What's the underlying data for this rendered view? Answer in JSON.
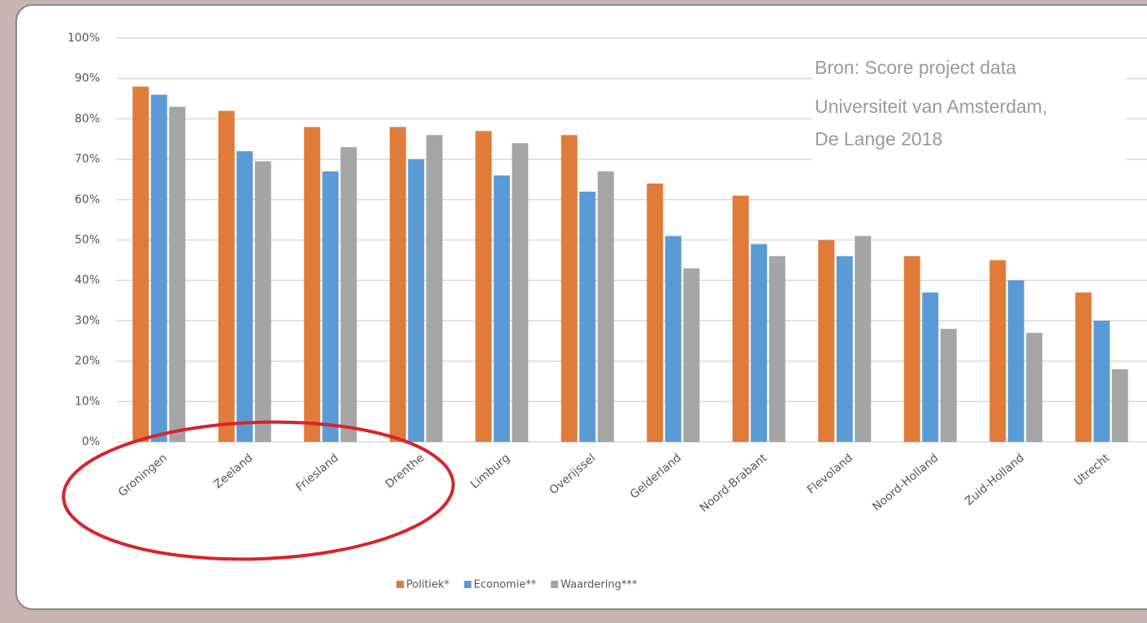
{
  "chart_data": {
    "type": "bar",
    "annotation": [
      "Bron: Score project data",
      "Universiteit van Amsterdam,",
      "De Lange 2018"
    ],
    "categories": [
      "Groningen",
      "Zeeland",
      "Friesland",
      "Drenthe",
      "Limburg",
      "Overijssel",
      "Gelderland",
      "Noord-Brabant",
      "Flevoland",
      "Noord-Holland",
      "Zuid-Holland",
      "Utrecht"
    ],
    "series": [
      {
        "name": "Politiek*",
        "color": "#e07b39",
        "values": [
          88,
          82,
          78,
          78,
          77,
          76,
          64,
          61,
          50,
          46,
          45,
          37
        ]
      },
      {
        "name": "Economie**",
        "color": "#5b9bd5",
        "values": [
          86,
          72,
          67,
          70,
          66,
          62,
          51,
          49,
          46,
          37,
          40,
          30
        ]
      },
      {
        "name": "Waardering***",
        "color": "#a5a5a5",
        "values": [
          83,
          69.5,
          73,
          76,
          74,
          67,
          43,
          46,
          51,
          28,
          27,
          18
        ]
      }
    ],
    "ylim": [
      0,
      100
    ],
    "yticks": [
      {
        "value": 0,
        "label": "0%"
      },
      {
        "value": 10,
        "label": "10%"
      },
      {
        "value": 20,
        "label": "20%"
      },
      {
        "value": 30,
        "label": "30%"
      },
      {
        "value": 40,
        "label": "40%"
      },
      {
        "value": 50,
        "label": "50%"
      },
      {
        "value": 60,
        "label": "60%"
      },
      {
        "value": 70,
        "label": "70%"
      },
      {
        "value": 80,
        "label": "80%"
      },
      {
        "value": 90,
        "label": "90%"
      },
      {
        "value": 100,
        "label": "100%"
      }
    ],
    "grid": true,
    "legend": "bottom"
  }
}
